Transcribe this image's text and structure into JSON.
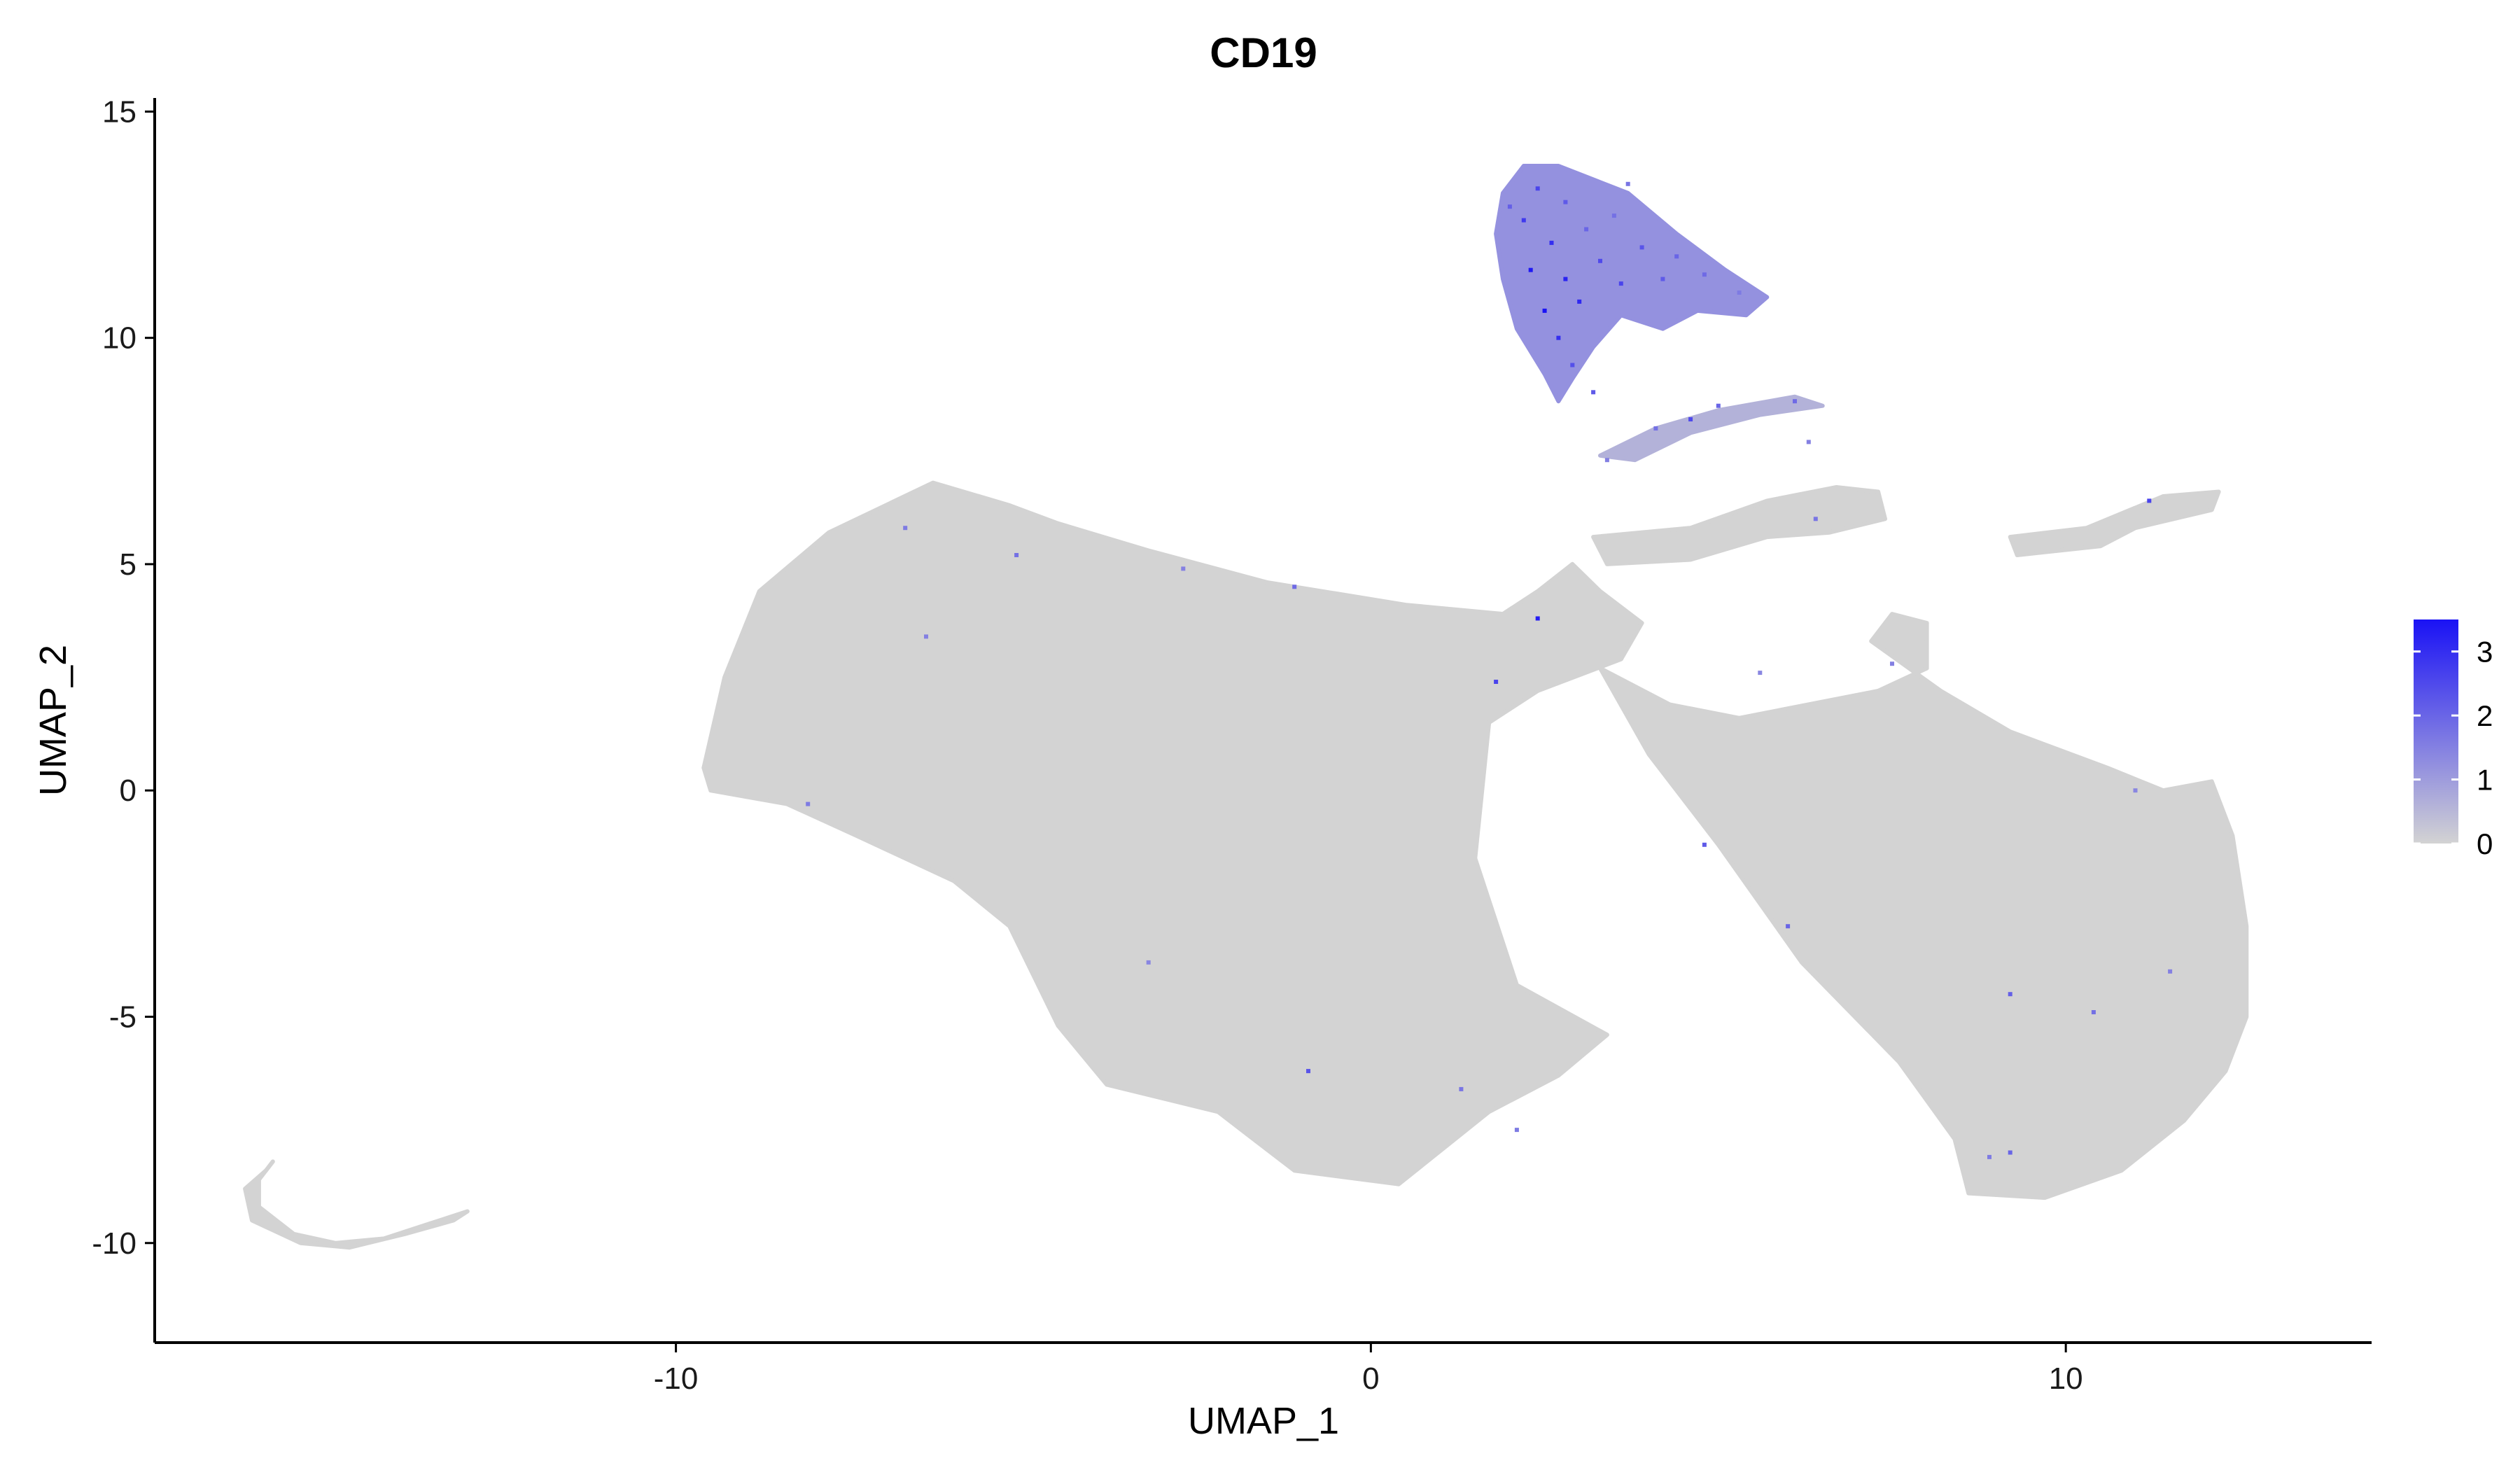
{
  "chart_data": {
    "type": "scatter",
    "title": "CD19",
    "xlabel": "UMAP_1",
    "ylabel": "UMAP_2",
    "xlim": [
      -17.5,
      14.4
    ],
    "ylim": [
      -12.2,
      15.3
    ],
    "x_ticks": [
      -10,
      0,
      10
    ],
    "x_tick_labels": [
      "-10",
      "0",
      "10"
    ],
    "y_ticks": [
      -10,
      -5,
      0,
      5,
      10,
      15
    ],
    "y_tick_labels": [
      "-10",
      "-5",
      "0",
      "5",
      "10",
      "15"
    ],
    "grid": false,
    "legend": {
      "placement": "right",
      "type": "colorbar",
      "min": 0,
      "max": 3.5,
      "ticks": [
        0,
        1,
        2,
        3
      ],
      "tick_labels": [
        "0",
        "1",
        "2",
        "3"
      ],
      "low_color": "#d3d3d3",
      "high_color": "#1a12f5"
    },
    "regions": [
      {
        "name": "left-lobe",
        "expression": 0,
        "outline": [
          [
            -9.6,
            0.5
          ],
          [
            -9.3,
            2.5
          ],
          [
            -8.8,
            4.4
          ],
          [
            -7.8,
            5.7
          ],
          [
            -6.3,
            6.8
          ],
          [
            -5.2,
            6.3
          ],
          [
            -4.5,
            5.9
          ],
          [
            -3.2,
            5.3
          ],
          [
            -1.5,
            4.6
          ],
          [
            0.5,
            4.1
          ],
          [
            1.9,
            3.9
          ],
          [
            2.4,
            4.4
          ],
          [
            2.9,
            5.0
          ],
          [
            3.3,
            4.4
          ],
          [
            3.9,
            3.7
          ],
          [
            3.6,
            2.9
          ],
          [
            2.4,
            2.2
          ],
          [
            1.7,
            1.5
          ],
          [
            1.5,
            -1.5
          ],
          [
            2.1,
            -4.3
          ],
          [
            3.4,
            -5.4
          ],
          [
            2.7,
            -6.3
          ],
          [
            1.7,
            -7.1
          ],
          [
            0.4,
            -8.7
          ],
          [
            -1.1,
            -8.4
          ],
          [
            -2.2,
            -7.1
          ],
          [
            -3.8,
            -6.5
          ],
          [
            -4.5,
            -5.2
          ],
          [
            -5.2,
            -3.0
          ],
          [
            -6.0,
            -2.0
          ],
          [
            -7.4,
            -1.0
          ],
          [
            -8.4,
            -0.3
          ],
          [
            -9.5,
            0.0
          ]
        ]
      },
      {
        "name": "right-lobe",
        "expression": 0,
        "outline": [
          [
            3.3,
            2.7
          ],
          [
            4.3,
            1.9
          ],
          [
            5.3,
            1.6
          ],
          [
            7.3,
            2.2
          ],
          [
            8.0,
            2.7
          ],
          [
            8.0,
            3.7
          ],
          [
            7.5,
            3.9
          ],
          [
            7.2,
            3.3
          ],
          [
            8.2,
            2.2
          ],
          [
            9.2,
            1.3
          ],
          [
            10.6,
            0.5
          ],
          [
            11.4,
            0.0
          ],
          [
            12.1,
            0.2
          ],
          [
            12.4,
            -1.0
          ],
          [
            12.6,
            -3.0
          ],
          [
            12.6,
            -5.0
          ],
          [
            12.3,
            -6.2
          ],
          [
            11.7,
            -7.3
          ],
          [
            10.8,
            -8.4
          ],
          [
            9.7,
            -9.0
          ],
          [
            8.6,
            -8.9
          ],
          [
            8.4,
            -7.7
          ],
          [
            7.6,
            -6.0
          ],
          [
            6.2,
            -3.8
          ],
          [
            5.0,
            -1.2
          ],
          [
            4.0,
            0.8
          ]
        ]
      },
      {
        "name": "tail-curve",
        "expression": 0,
        "outline": [
          [
            -15.8,
            -8.2
          ],
          [
            -16.0,
            -8.6
          ],
          [
            -16.0,
            -9.2
          ],
          [
            -15.5,
            -9.8
          ],
          [
            -14.9,
            -10.0
          ],
          [
            -14.2,
            -9.9
          ],
          [
            -13.6,
            -9.6
          ],
          [
            -13.0,
            -9.3
          ],
          [
            -13.2,
            -9.5
          ],
          [
            -13.9,
            -9.8
          ],
          [
            -14.7,
            -10.1
          ],
          [
            -15.4,
            -10.0
          ],
          [
            -16.1,
            -9.5
          ],
          [
            -16.2,
            -8.8
          ],
          [
            -15.9,
            -8.4
          ]
        ]
      },
      {
        "name": "upper-band",
        "expression": 0,
        "outline": [
          [
            3.2,
            5.6
          ],
          [
            4.6,
            5.8
          ],
          [
            5.7,
            6.4
          ],
          [
            6.7,
            6.7
          ],
          [
            7.3,
            6.6
          ],
          [
            7.4,
            6.0
          ],
          [
            6.6,
            5.7
          ],
          [
            5.7,
            5.6
          ],
          [
            4.6,
            5.1
          ],
          [
            3.4,
            5.0
          ]
        ]
      },
      {
        "name": "right-strand",
        "expression": 0,
        "outline": [
          [
            9.2,
            5.6
          ],
          [
            10.3,
            5.8
          ],
          [
            11.4,
            6.5
          ],
          [
            12.2,
            6.6
          ],
          [
            12.1,
            6.2
          ],
          [
            11.0,
            5.8
          ],
          [
            10.5,
            5.4
          ],
          [
            9.3,
            5.2
          ]
        ]
      },
      {
        "name": "b-cell-cluster",
        "expression": 1.2,
        "outline": [
          [
            1.9,
            13.2
          ],
          [
            2.2,
            13.8
          ],
          [
            2.7,
            13.8
          ],
          [
            3.7,
            13.2
          ],
          [
            4.4,
            12.3
          ],
          [
            5.1,
            11.5
          ],
          [
            5.7,
            10.9
          ],
          [
            5.4,
            10.5
          ],
          [
            4.7,
            10.6
          ],
          [
            4.2,
            10.2
          ],
          [
            3.6,
            10.5
          ],
          [
            3.2,
            9.8
          ],
          [
            2.9,
            9.1
          ],
          [
            2.7,
            8.6
          ],
          [
            2.5,
            9.2
          ],
          [
            2.1,
            10.2
          ],
          [
            1.9,
            11.3
          ],
          [
            1.8,
            12.3
          ]
        ]
      },
      {
        "name": "b-cell-arc",
        "expression": 0.6,
        "outline": [
          [
            3.3,
            7.4
          ],
          [
            4.1,
            8.0
          ],
          [
            5.0,
            8.4
          ],
          [
            6.1,
            8.7
          ],
          [
            6.5,
            8.5
          ],
          [
            5.6,
            8.3
          ],
          [
            4.6,
            7.9
          ],
          [
            3.8,
            7.3
          ]
        ]
      }
    ],
    "high_expression_points": [
      {
        "x": 2.4,
        "y": 13.3,
        "value": 2.6
      },
      {
        "x": 2.8,
        "y": 13.0,
        "value": 2.2
      },
      {
        "x": 2.2,
        "y": 12.6,
        "value": 2.8
      },
      {
        "x": 3.1,
        "y": 12.4,
        "value": 2.0
      },
      {
        "x": 2.6,
        "y": 12.1,
        "value": 3.0
      },
      {
        "x": 3.5,
        "y": 12.7,
        "value": 1.8
      },
      {
        "x": 2.3,
        "y": 11.5,
        "value": 3.4
      },
      {
        "x": 2.8,
        "y": 11.3,
        "value": 3.2
      },
      {
        "x": 3.3,
        "y": 11.7,
        "value": 2.5
      },
      {
        "x": 3.9,
        "y": 12.0,
        "value": 2.3
      },
      {
        "x": 4.4,
        "y": 11.8,
        "value": 2.0
      },
      {
        "x": 2.5,
        "y": 10.6,
        "value": 3.5
      },
      {
        "x": 3.0,
        "y": 10.8,
        "value": 3.1
      },
      {
        "x": 3.6,
        "y": 11.2,
        "value": 2.6
      },
      {
        "x": 4.2,
        "y": 11.3,
        "value": 2.2
      },
      {
        "x": 4.8,
        "y": 11.4,
        "value": 1.9
      },
      {
        "x": 2.7,
        "y": 10.0,
        "value": 3.0
      },
      {
        "x": 2.9,
        "y": 9.4,
        "value": 2.4
      },
      {
        "x": 5.3,
        "y": 11.0,
        "value": 1.6
      },
      {
        "x": 2.0,
        "y": 12.9,
        "value": 2.1
      },
      {
        "x": 3.7,
        "y": 13.4,
        "value": 1.7
      },
      {
        "x": 4.1,
        "y": 8.0,
        "value": 1.8
      },
      {
        "x": 5.0,
        "y": 8.5,
        "value": 2.0
      },
      {
        "x": 6.1,
        "y": 8.6,
        "value": 1.9
      },
      {
        "x": 3.4,
        "y": 7.3,
        "value": 1.5
      },
      {
        "x": 2.4,
        "y": 3.8,
        "value": 3.3
      },
      {
        "x": 1.8,
        "y": 2.4,
        "value": 2.6
      },
      {
        "x": -6.7,
        "y": 5.8,
        "value": 1.6
      },
      {
        "x": -5.1,
        "y": 5.2,
        "value": 1.8
      },
      {
        "x": -2.7,
        "y": 4.9,
        "value": 1.5
      },
      {
        "x": -1.1,
        "y": 4.5,
        "value": 1.9
      },
      {
        "x": -6.4,
        "y": 3.4,
        "value": 1.5
      },
      {
        "x": -8.1,
        "y": -0.3,
        "value": 1.6
      },
      {
        "x": -3.2,
        "y": -3.8,
        "value": 1.4
      },
      {
        "x": -0.9,
        "y": -6.2,
        "value": 2.3
      },
      {
        "x": 1.3,
        "y": -6.6,
        "value": 1.7
      },
      {
        "x": 2.1,
        "y": -7.5,
        "value": 1.6
      },
      {
        "x": 4.8,
        "y": -1.2,
        "value": 2.2
      },
      {
        "x": 6.0,
        "y": -3.0,
        "value": 2.0
      },
      {
        "x": 9.2,
        "y": -4.5,
        "value": 2.1
      },
      {
        "x": 10.4,
        "y": -4.9,
        "value": 1.8
      },
      {
        "x": 9.2,
        "y": -8.0,
        "value": 2.0
      },
      {
        "x": 8.9,
        "y": -8.1,
        "value": 1.6
      },
      {
        "x": 11.5,
        "y": -4.0,
        "value": 1.5
      },
      {
        "x": 11.2,
        "y": 6.4,
        "value": 2.6
      },
      {
        "x": 6.4,
        "y": 6.0,
        "value": 1.7
      },
      {
        "x": 7.5,
        "y": 2.8,
        "value": 1.5
      },
      {
        "x": 5.6,
        "y": 2.6,
        "value": 1.4
      },
      {
        "x": 11.0,
        "y": 0.0,
        "value": 1.4
      },
      {
        "x": 6.3,
        "y": 7.7,
        "value": 1.5
      },
      {
        "x": 4.6,
        "y": 8.2,
        "value": 2.5
      },
      {
        "x": 3.2,
        "y": 8.8,
        "value": 2.2
      }
    ]
  }
}
